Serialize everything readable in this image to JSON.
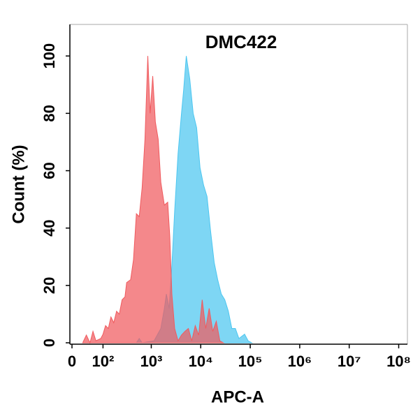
{
  "chart_data": {
    "type": "histogram-overlay",
    "title": "DMC422",
    "xlabel": "APC-A",
    "ylabel": "Count  (%)",
    "xscale": "asinh",
    "xlim": [
      0,
      150000000
    ],
    "xticks": [
      0,
      {
        "value": 100,
        "label": "10²"
      },
      {
        "value": 1000,
        "label": "10³"
      },
      {
        "value": 10000,
        "label": "10⁴"
      },
      {
        "value": 100000,
        "label": "10⁵"
      },
      {
        "value": 1000000,
        "label": "10⁶"
      },
      {
        "value": 10000000,
        "label": "10⁷"
      },
      {
        "value": 100000000,
        "label": "10⁸"
      }
    ],
    "ylim": [
      0,
      111
    ],
    "yticks": [
      0,
      20,
      40,
      60,
      80,
      100
    ],
    "series": [
      {
        "color": "#4cc6f0",
        "x": [
          499,
          570,
          652,
          1140,
          1560,
          1840,
          2020,
          2300,
          2610,
          2970,
          3480,
          4080,
          4500,
          5100,
          6000,
          7030,
          8250,
          9680,
          11400,
          13400,
          15800,
          18700,
          22000,
          26000,
          30600,
          36100,
          42500,
          50100,
          59000,
          76900,
          90600,
          107000
        ],
        "values": [
          0,
          1.5,
          0,
          0.7,
          5,
          12,
          17,
          12,
          27,
          46,
          66,
          80,
          88,
          100,
          92,
          80,
          75,
          61,
          55,
          51,
          39,
          28,
          22,
          17,
          15,
          11,
          5,
          5,
          1.5,
          3,
          0.7,
          0
        ]
      },
      {
        "color": "#f05a5e",
        "x": [
          26,
          36,
          47,
          57,
          68,
          89,
          100,
          114,
          131,
          149,
          171,
          196,
          223,
          255,
          292,
          316,
          381,
          436,
          499,
          570,
          652,
          745,
          851,
          948,
          1070,
          1210,
          1380,
          1560,
          1840,
          2150,
          2370,
          2610,
          2970,
          3480,
          4080,
          4800,
          5620,
          6590,
          7740,
          9080,
          10700,
          12600,
          14800,
          17500,
          20600,
          24300,
          28600
        ],
        "values": [
          0,
          2.7,
          0,
          4,
          0.7,
          1.5,
          3,
          6,
          5,
          9,
          7,
          11,
          10,
          15,
          16,
          21,
          22,
          29,
          45,
          44,
          54,
          71,
          100,
          80,
          93,
          77,
          71,
          56,
          48,
          49,
          37,
          17,
          5,
          0.7,
          2.7,
          4,
          5,
          0.7,
          6,
          2.7,
          15,
          5,
          12,
          4,
          7.5,
          0.7,
          0
        ]
      }
    ]
  }
}
